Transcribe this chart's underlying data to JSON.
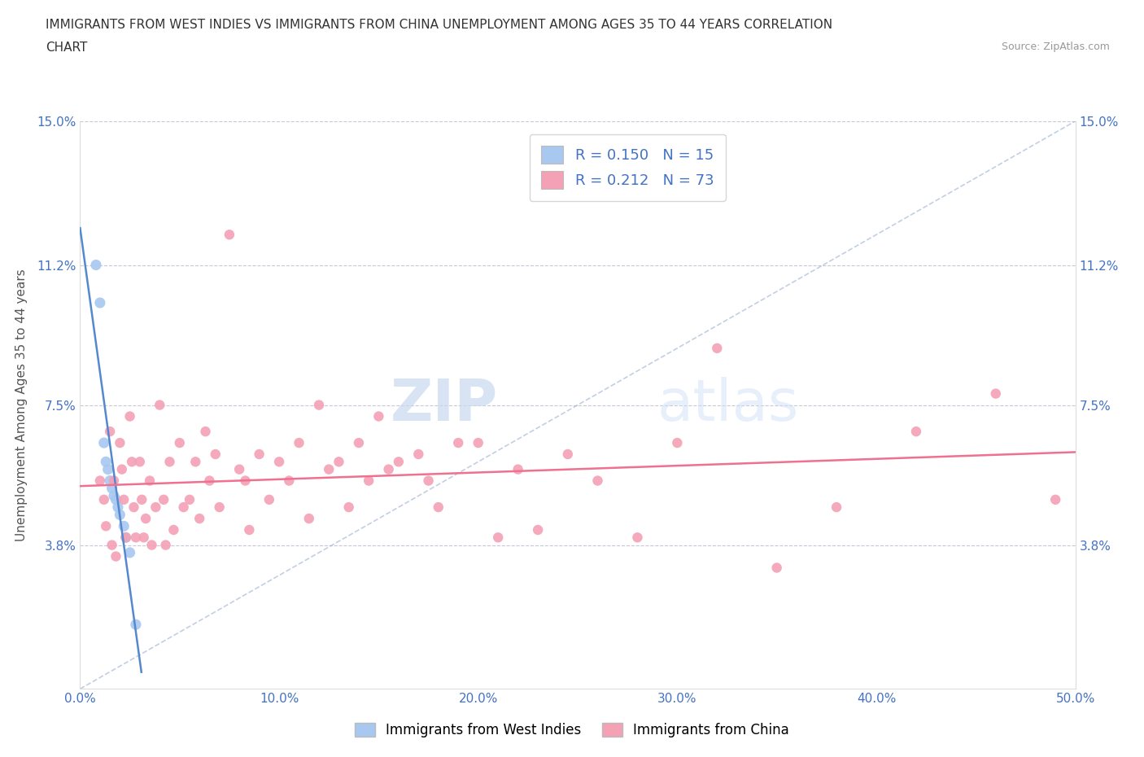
{
  "title_line1": "IMMIGRANTS FROM WEST INDIES VS IMMIGRANTS FROM CHINA UNEMPLOYMENT AMONG AGES 35 TO 44 YEARS CORRELATION",
  "title_line2": "CHART",
  "source_text": "Source: ZipAtlas.com",
  "ylabel": "Unemployment Among Ages 35 to 44 years",
  "xlim": [
    0.0,
    0.5
  ],
  "ylim": [
    0.0,
    0.15
  ],
  "yticks": [
    0.0,
    0.038,
    0.075,
    0.112,
    0.15
  ],
  "ytick_labels_left": [
    "",
    "3.8%",
    "7.5%",
    "11.2%",
    "15.0%"
  ],
  "ytick_labels_right": [
    "",
    "3.8%",
    "7.5%",
    "11.2%",
    "15.0%"
  ],
  "xticks": [
    0.0,
    0.1,
    0.2,
    0.3,
    0.4,
    0.5
  ],
  "xtick_labels": [
    "0.0%",
    "10.0%",
    "20.0%",
    "30.0%",
    "40.0%",
    "50.0%"
  ],
  "color_west_indies": "#a8c8f0",
  "color_china": "#f4a0b5",
  "color_line_west_indies": "#5588cc",
  "color_line_china": "#f07090",
  "color_diag": "#9ab0d0",
  "color_tick_labels": "#4472c4",
  "R_west_indies": 0.15,
  "N_west_indies": 15,
  "R_china": 0.212,
  "N_china": 73,
  "legend_label_west_indies": "Immigrants from West Indies",
  "legend_label_china": "Immigrants from China",
  "watermark_zip": "ZIP",
  "watermark_atlas": "atlas",
  "grid_color": "#c8c8d8",
  "background_color": "#ffffff",
  "west_indies_x": [
    0.008,
    0.01,
    0.012,
    0.013,
    0.014,
    0.015,
    0.016,
    0.017,
    0.018,
    0.019,
    0.02,
    0.022,
    0.023,
    0.025,
    0.028
  ],
  "west_indies_y": [
    0.112,
    0.102,
    0.065,
    0.06,
    0.058,
    0.055,
    0.053,
    0.051,
    0.05,
    0.048,
    0.046,
    0.043,
    0.04,
    0.036,
    0.017
  ],
  "china_x": [
    0.01,
    0.012,
    0.013,
    0.015,
    0.016,
    0.017,
    0.018,
    0.02,
    0.021,
    0.022,
    0.023,
    0.025,
    0.026,
    0.027,
    0.028,
    0.03,
    0.031,
    0.032,
    0.033,
    0.035,
    0.036,
    0.038,
    0.04,
    0.042,
    0.043,
    0.045,
    0.047,
    0.05,
    0.052,
    0.055,
    0.058,
    0.06,
    0.063,
    0.065,
    0.068,
    0.07,
    0.075,
    0.08,
    0.083,
    0.085,
    0.09,
    0.095,
    0.1,
    0.105,
    0.11,
    0.115,
    0.12,
    0.125,
    0.13,
    0.135,
    0.14,
    0.145,
    0.15,
    0.155,
    0.16,
    0.17,
    0.175,
    0.18,
    0.19,
    0.2,
    0.21,
    0.22,
    0.23,
    0.245,
    0.26,
    0.28,
    0.3,
    0.32,
    0.35,
    0.38,
    0.42,
    0.46,
    0.49
  ],
  "china_y": [
    0.055,
    0.05,
    0.043,
    0.068,
    0.038,
    0.055,
    0.035,
    0.065,
    0.058,
    0.05,
    0.04,
    0.072,
    0.06,
    0.048,
    0.04,
    0.06,
    0.05,
    0.04,
    0.045,
    0.055,
    0.038,
    0.048,
    0.075,
    0.05,
    0.038,
    0.06,
    0.042,
    0.065,
    0.048,
    0.05,
    0.06,
    0.045,
    0.068,
    0.055,
    0.062,
    0.048,
    0.12,
    0.058,
    0.055,
    0.042,
    0.062,
    0.05,
    0.06,
    0.055,
    0.065,
    0.045,
    0.075,
    0.058,
    0.06,
    0.048,
    0.065,
    0.055,
    0.072,
    0.058,
    0.06,
    0.062,
    0.055,
    0.048,
    0.065,
    0.065,
    0.04,
    0.058,
    0.042,
    0.062,
    0.055,
    0.04,
    0.065,
    0.09,
    0.032,
    0.048,
    0.068,
    0.078,
    0.05
  ]
}
